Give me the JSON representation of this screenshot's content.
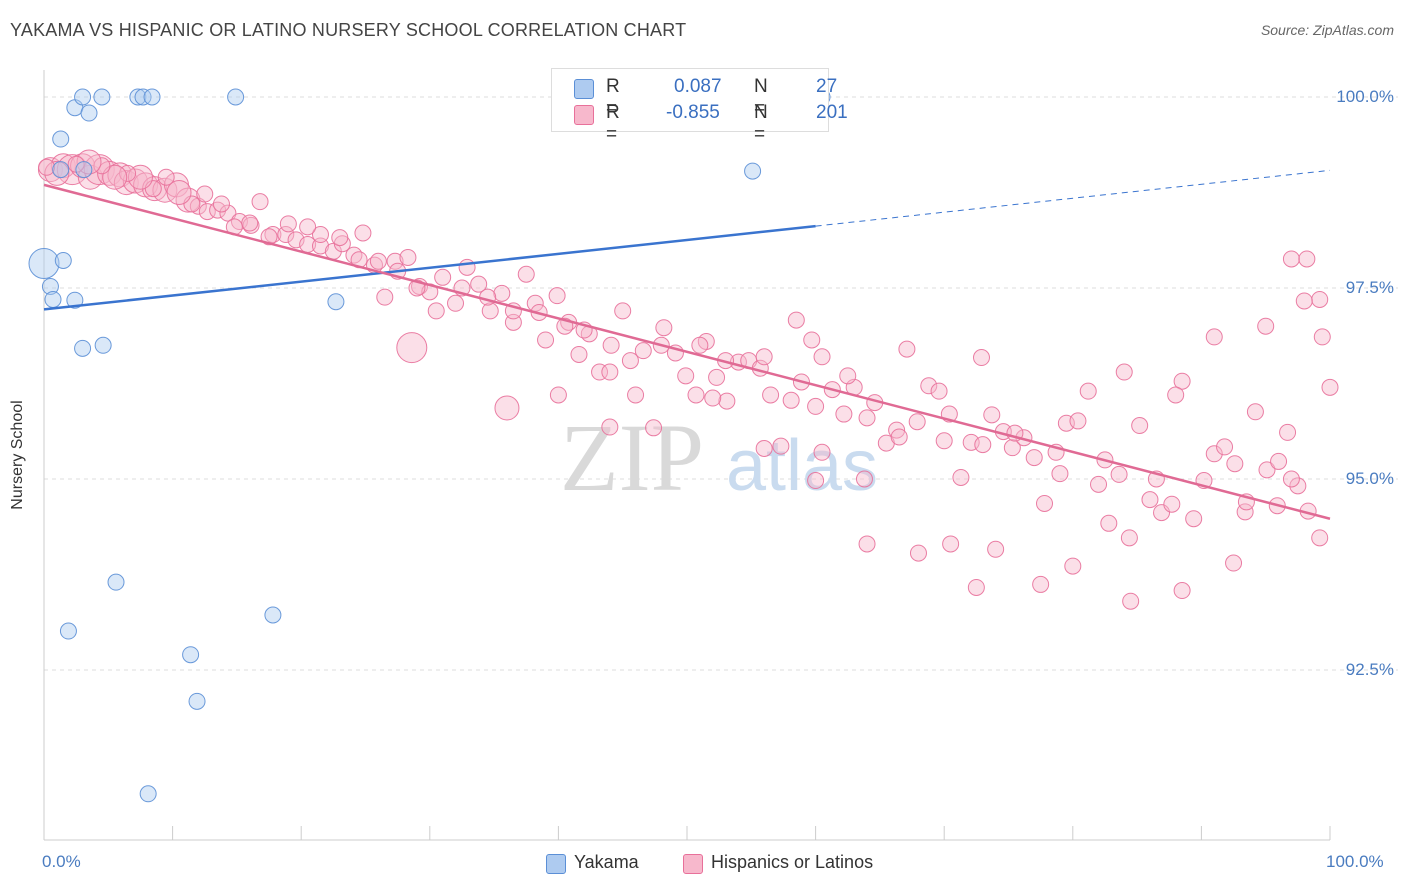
{
  "title": "YAKAMA VS HISPANIC OR LATINO NURSERY SCHOOL CORRELATION CHART",
  "source": "Source: ZipAtlas.com",
  "watermark": {
    "zip": "ZIP",
    "atlas": "atlas"
  },
  "colors": {
    "blue": "#5b8fd6",
    "blue_fill": "#aecbf0",
    "pink": "#e8709a",
    "pink_fill": "#f7b8cc",
    "tick_text": "#4a7cc0"
  },
  "legend": {
    "rows": [
      {
        "r_label": "R =",
        "r_value": "0.087",
        "n_label": "N =",
        "n_value": "27"
      },
      {
        "r_label": "R =",
        "r_value": "-0.855",
        "n_label": "N =",
        "n_value": "201"
      }
    ]
  },
  "chart_data": {
    "type": "scatter",
    "title": "YAKAMA VS HISPANIC OR LATINO NURSERY SCHOOL CORRELATION CHART",
    "xlabel": "",
    "ylabel": "Nursery School",
    "xlim": [
      0,
      100
    ],
    "ylim": [
      90.3,
      100.4
    ],
    "x_tick_labels": [
      "0.0%",
      "100.0%"
    ],
    "y_ticks": [
      {
        "value": 100.0,
        "label": "100.0%"
      },
      {
        "value": 97.5,
        "label": "97.5%"
      },
      {
        "value": 95.0,
        "label": "95.0%"
      },
      {
        "value": 92.5,
        "label": "92.5%"
      }
    ],
    "grid": "horizontal dashed",
    "series": [
      {
        "name": "Yakama",
        "trend": {
          "x0": 0,
          "y0": 97.22,
          "x1": 60,
          "y1": 98.31,
          "dash_to_x": 100,
          "dash_to_y": 99.04
        },
        "points": [
          [
            0.0,
            97.82,
            3
          ],
          [
            0.5,
            97.52,
            1
          ],
          [
            0.7,
            97.35,
            1
          ],
          [
            1.5,
            97.86,
            1
          ],
          [
            1.3,
            99.05,
            1
          ],
          [
            1.3,
            99.45,
            1
          ],
          [
            2.4,
            99.86,
            1
          ],
          [
            2.4,
            97.34,
            1
          ],
          [
            3.0,
            100.0,
            1
          ],
          [
            3.5,
            99.79,
            1
          ],
          [
            4.5,
            100.0,
            1
          ],
          [
            7.3,
            100.0,
            1
          ],
          [
            7.7,
            100.0,
            1
          ],
          [
            8.4,
            100.0,
            1
          ],
          [
            3.1,
            99.05,
            1
          ],
          [
            3.0,
            96.71,
            1
          ],
          [
            4.6,
            96.75,
            1
          ],
          [
            5.6,
            93.65,
            1
          ],
          [
            1.9,
            93.01,
            1
          ],
          [
            11.4,
            92.7,
            1
          ],
          [
            11.9,
            92.09,
            1
          ],
          [
            8.1,
            90.88,
            1
          ],
          [
            14.9,
            100.0,
            1
          ],
          [
            17.8,
            93.22,
            1
          ],
          [
            22.7,
            97.32,
            1
          ],
          [
            60.5,
            100.0,
            1
          ],
          [
            55.1,
            99.03,
            1
          ]
        ]
      },
      {
        "name": "Hispanics or Latinos",
        "trend": {
          "x0": 0,
          "y0": 98.85,
          "x1": 100,
          "y1": 94.48
        },
        "points": [
          [
            0.5,
            99.05,
            2
          ],
          [
            1.5,
            99.1,
            2
          ],
          [
            2.2,
            99.05,
            3
          ],
          [
            3.0,
            99.1,
            2
          ],
          [
            3.6,
            98.95,
            2
          ],
          [
            4.3,
            99.05,
            3
          ],
          [
            5.1,
            99.0,
            2
          ],
          [
            5.9,
            98.98,
            2
          ],
          [
            6.4,
            98.88,
            2
          ],
          [
            7.1,
            98.9,
            2
          ],
          [
            7.9,
            98.85,
            2
          ],
          [
            8.6,
            98.8,
            2
          ],
          [
            9.4,
            98.78,
            2
          ],
          [
            10.3,
            98.85,
            2
          ],
          [
            11.2,
            98.65,
            2
          ],
          [
            12.0,
            98.57,
            1
          ],
          [
            12.7,
            98.5,
            1
          ],
          [
            13.5,
            98.52,
            1
          ],
          [
            14.3,
            98.48,
            1
          ],
          [
            15.2,
            98.37,
            1
          ],
          [
            16.1,
            98.32,
            1
          ],
          [
            16.8,
            98.63,
            1
          ],
          [
            17.8,
            98.2,
            1
          ],
          [
            18.8,
            98.2,
            1
          ],
          [
            19.6,
            98.13,
            1
          ],
          [
            20.5,
            98.07,
            1
          ],
          [
            21.5,
            98.05,
            1
          ],
          [
            22.5,
            97.98,
            1
          ],
          [
            23.2,
            98.08,
            1
          ],
          [
            24.1,
            97.93,
            1
          ],
          [
            24.8,
            98.22,
            1
          ],
          [
            25.7,
            97.8,
            1
          ],
          [
            26.5,
            97.38,
            1
          ],
          [
            27.3,
            97.85,
            1
          ],
          [
            28.3,
            97.9,
            1
          ],
          [
            29.2,
            97.52,
            1
          ],
          [
            30.0,
            97.45,
            1
          ],
          [
            31.0,
            97.64,
            1
          ],
          [
            32.0,
            97.3,
            1
          ],
          [
            32.9,
            97.77,
            1
          ],
          [
            33.8,
            97.55,
            1
          ],
          [
            34.7,
            97.2,
            1
          ],
          [
            35.6,
            97.43,
            1
          ],
          [
            36.5,
            97.05,
            1
          ],
          [
            37.5,
            97.68,
            1
          ],
          [
            38.2,
            97.3,
            1
          ],
          [
            39.0,
            96.82,
            1
          ],
          [
            39.9,
            97.4,
            1
          ],
          [
            40.8,
            97.05,
            1
          ],
          [
            41.6,
            96.63,
            1
          ],
          [
            42.4,
            96.9,
            1
          ],
          [
            43.2,
            96.4,
            1
          ],
          [
            44.1,
            96.75,
            1
          ],
          [
            45.0,
            97.2,
            1
          ],
          [
            45.6,
            96.55,
            1
          ],
          [
            46.6,
            96.68,
            1
          ],
          [
            47.4,
            95.67,
            1
          ],
          [
            48.2,
            96.98,
            1
          ],
          [
            49.1,
            96.65,
            1
          ],
          [
            49.9,
            96.35,
            1
          ],
          [
            50.7,
            96.1,
            1
          ],
          [
            51.5,
            96.8,
            1
          ],
          [
            52.3,
            96.33,
            1
          ],
          [
            53.1,
            96.02,
            1
          ],
          [
            54.0,
            96.53,
            1
          ],
          [
            54.8,
            96.55,
            1
          ],
          [
            55.7,
            96.45,
            1
          ],
          [
            56.5,
            96.1,
            1
          ],
          [
            57.3,
            95.43,
            1
          ],
          [
            58.1,
            96.03,
            1
          ],
          [
            58.9,
            96.27,
            1
          ],
          [
            59.7,
            96.82,
            1
          ],
          [
            60.5,
            95.35,
            1
          ],
          [
            61.3,
            96.17,
            1
          ],
          [
            62.2,
            95.85,
            1
          ],
          [
            63.0,
            96.2,
            1
          ],
          [
            63.8,
            95.0,
            1
          ],
          [
            64.6,
            96.0,
            1
          ],
          [
            65.5,
            95.47,
            1
          ],
          [
            66.3,
            95.64,
            1
          ],
          [
            67.1,
            96.7,
            1
          ],
          [
            67.9,
            95.75,
            1
          ],
          [
            68.8,
            96.22,
            1
          ],
          [
            69.6,
            96.15,
            1
          ],
          [
            70.4,
            95.85,
            1
          ],
          [
            71.3,
            95.02,
            1
          ],
          [
            72.1,
            95.48,
            1
          ],
          [
            72.9,
            96.59,
            1
          ],
          [
            73.7,
            95.84,
            1
          ],
          [
            74.6,
            95.62,
            1
          ],
          [
            75.3,
            95.41,
            1
          ],
          [
            76.2,
            95.54,
            1
          ],
          [
            77.0,
            95.28,
            1
          ],
          [
            77.8,
            94.68,
            1
          ],
          [
            78.7,
            95.35,
            1
          ],
          [
            79.5,
            95.73,
            1
          ],
          [
            80.4,
            95.76,
            1
          ],
          [
            81.2,
            96.15,
            1
          ],
          [
            82.0,
            94.93,
            1
          ],
          [
            82.8,
            94.42,
            1
          ],
          [
            83.6,
            95.06,
            1
          ],
          [
            84.4,
            94.23,
            1
          ],
          [
            85.2,
            95.7,
            1
          ],
          [
            86.0,
            94.73,
            1
          ],
          [
            86.9,
            94.56,
            1
          ],
          [
            87.7,
            94.67,
            1
          ],
          [
            88.5,
            96.28,
            1
          ],
          [
            89.4,
            94.48,
            1
          ],
          [
            90.2,
            94.98,
            1
          ],
          [
            91.0,
            95.33,
            1
          ],
          [
            91.8,
            95.42,
            1
          ],
          [
            92.6,
            95.2,
            1
          ],
          [
            93.4,
            94.57,
            1
          ],
          [
            94.2,
            95.88,
            1
          ],
          [
            95.1,
            95.12,
            1
          ],
          [
            95.9,
            94.65,
            1
          ],
          [
            96.7,
            95.61,
            1
          ],
          [
            97.5,
            94.91,
            1
          ],
          [
            98.3,
            94.58,
            1
          ],
          [
            99.2,
            94.23,
            1
          ],
          [
            97.0,
            97.88,
            1
          ],
          [
            98.2,
            97.88,
            1
          ],
          [
            99.2,
            97.35,
            1
          ],
          [
            98.0,
            97.33,
            1
          ],
          [
            99.4,
            96.86,
            1
          ],
          [
            100.0,
            96.2,
            1
          ],
          [
            95.0,
            97.0,
            1
          ],
          [
            91.0,
            96.86,
            1
          ],
          [
            88.0,
            96.1,
            1
          ],
          [
            84.0,
            96.4,
            1
          ],
          [
            28.6,
            96.72,
            3
          ],
          [
            36.0,
            95.93,
            2
          ],
          [
            40.0,
            96.1,
            1
          ],
          [
            44.0,
            95.68,
            1
          ],
          [
            52.0,
            96.06,
            1
          ],
          [
            56.0,
            95.4,
            1
          ],
          [
            60.0,
            94.98,
            1
          ],
          [
            64.0,
            94.15,
            1
          ],
          [
            68.0,
            94.03,
            1
          ],
          [
            70.5,
            94.15,
            1
          ],
          [
            72.5,
            93.58,
            1
          ],
          [
            74.0,
            94.08,
            1
          ],
          [
            77.5,
            93.62,
            1
          ],
          [
            80.0,
            93.86,
            1
          ],
          [
            84.5,
            93.4,
            1
          ],
          [
            88.5,
            93.54,
            1
          ],
          [
            92.5,
            93.9,
            1
          ],
          [
            93.5,
            94.7,
            1
          ],
          [
            96.0,
            95.23,
            1
          ],
          [
            97.0,
            95.0,
            1
          ],
          [
            86.5,
            95.0,
            1
          ],
          [
            82.5,
            95.25,
            1
          ],
          [
            79.0,
            95.07,
            1
          ],
          [
            75.5,
            95.6,
            1
          ],
          [
            73.0,
            95.45,
            1
          ],
          [
            70.0,
            95.5,
            1
          ],
          [
            66.5,
            95.55,
            1
          ],
          [
            64.0,
            95.8,
            1
          ],
          [
            62.5,
            96.35,
            1
          ],
          [
            60.5,
            96.6,
            1
          ],
          [
            58.5,
            97.08,
            1
          ],
          [
            56.0,
            96.6,
            1
          ],
          [
            53.0,
            96.55,
            1
          ],
          [
            51.0,
            96.75,
            1
          ],
          [
            48.0,
            96.75,
            1
          ],
          [
            46.0,
            96.1,
            1
          ],
          [
            44.0,
            96.4,
            1
          ],
          [
            42.0,
            96.95,
            1
          ],
          [
            40.5,
            97.0,
            1
          ],
          [
            38.5,
            97.18,
            1
          ],
          [
            36.5,
            97.2,
            1
          ],
          [
            34.5,
            97.38,
            1
          ],
          [
            32.5,
            97.5,
            1
          ],
          [
            30.5,
            97.2,
            1
          ],
          [
            29.0,
            97.5,
            1
          ],
          [
            27.5,
            97.72,
            1
          ],
          [
            26.0,
            97.85,
            1
          ],
          [
            24.5,
            97.87,
            1
          ],
          [
            23.0,
            98.16,
            1
          ],
          [
            21.5,
            98.2,
            1
          ],
          [
            20.5,
            98.3,
            1
          ],
          [
            19.0,
            98.34,
            1
          ],
          [
            17.5,
            98.17,
            1
          ],
          [
            16.0,
            98.35,
            1
          ],
          [
            14.8,
            98.3,
            1
          ],
          [
            13.8,
            98.6,
            1
          ],
          [
            12.5,
            98.73,
            1
          ],
          [
            11.5,
            98.6,
            1
          ],
          [
            10.5,
            98.75,
            2
          ],
          [
            9.5,
            98.95,
            1
          ],
          [
            8.5,
            98.8,
            1
          ],
          [
            7.5,
            98.95,
            2
          ],
          [
            6.5,
            99.0,
            1
          ],
          [
            5.5,
            98.95,
            2
          ],
          [
            4.5,
            99.1,
            1
          ],
          [
            3.5,
            99.15,
            2
          ],
          [
            2.5,
            99.12,
            1
          ],
          [
            1.0,
            99.0,
            2
          ],
          [
            0.2,
            99.08,
            1
          ],
          [
            60.0,
            95.95,
            1
          ]
        ]
      }
    ]
  },
  "bottom_legend": [
    {
      "label": "Yakama"
    },
    {
      "label": "Hispanics or Latinos"
    }
  ]
}
